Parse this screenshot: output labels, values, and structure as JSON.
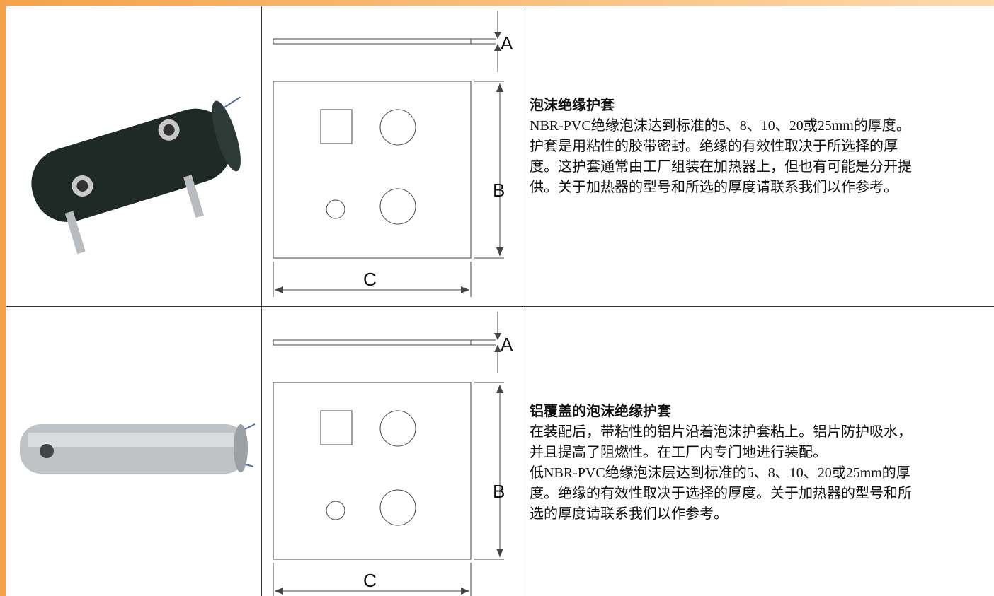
{
  "rows": [
    {
      "diagram": {
        "a": "A",
        "b": "B",
        "c": "C"
      },
      "title": "泡沫绝缘护套",
      "lines": [
        "NBR-PVC绝缘泡沫达到标准的5、8、10、20或25mm的厚度。",
        "护套是用粘性的胶带密封。绝缘的有效性取决于所选择的厚",
        "度。这护套通常由工厂组装在加热器上，但也有可能是分开提",
        "供。关于加热器的型号和所选的厚度请联系我们以作参考。"
      ]
    },
    {
      "diagram": {
        "a": "A",
        "b": "B",
        "c": "C"
      },
      "title": "铝覆盖的泡沫绝缘护套",
      "lines": [
        "在装配后，带粘性的铝片沿着泡沫护套粘上。铝片防护吸水，",
        "并且提高了阻燃性。在工厂内专门地进行装配。",
        "低NBR-PVC绝缘泡沫层达到标准的5、8、10、20或25mm的厚",
        "度。绝缘的有效性取决于选择的厚度。关于加热器的型号和所",
        "选的厚度请联系我们以作参考。"
      ]
    }
  ]
}
